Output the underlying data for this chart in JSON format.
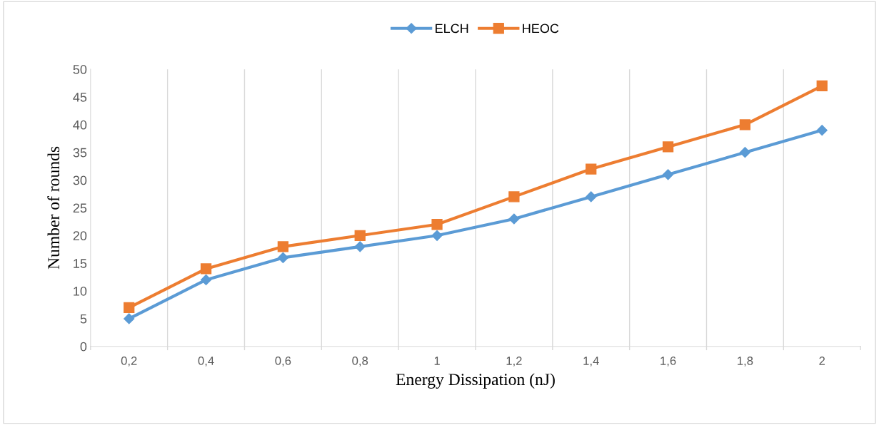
{
  "chart_data": {
    "type": "line",
    "xlabel": "Energy Dissipation (nJ)",
    "ylabel": "Number of rounds",
    "categories": [
      "0,2",
      "0,4",
      "0,6",
      "0,8",
      "1",
      "1,2",
      "1,4",
      "1,6",
      "1,8",
      "2"
    ],
    "series": [
      {
        "name": "ELCH",
        "color": "#5b9bd5",
        "marker": "diamond",
        "values": [
          5,
          12,
          16,
          18,
          20,
          23,
          27,
          31,
          35,
          39
        ]
      },
      {
        "name": "HEOC",
        "color": "#ed7d31",
        "marker": "square",
        "values": [
          7,
          14,
          18,
          20,
          22,
          27,
          32,
          36,
          40,
          47
        ]
      }
    ],
    "ylim": [
      0,
      50
    ],
    "yticks": [
      0,
      5,
      10,
      15,
      20,
      25,
      30,
      35,
      40,
      45,
      50
    ],
    "grid": "x",
    "legend": "top",
    "line_style": "solid"
  }
}
